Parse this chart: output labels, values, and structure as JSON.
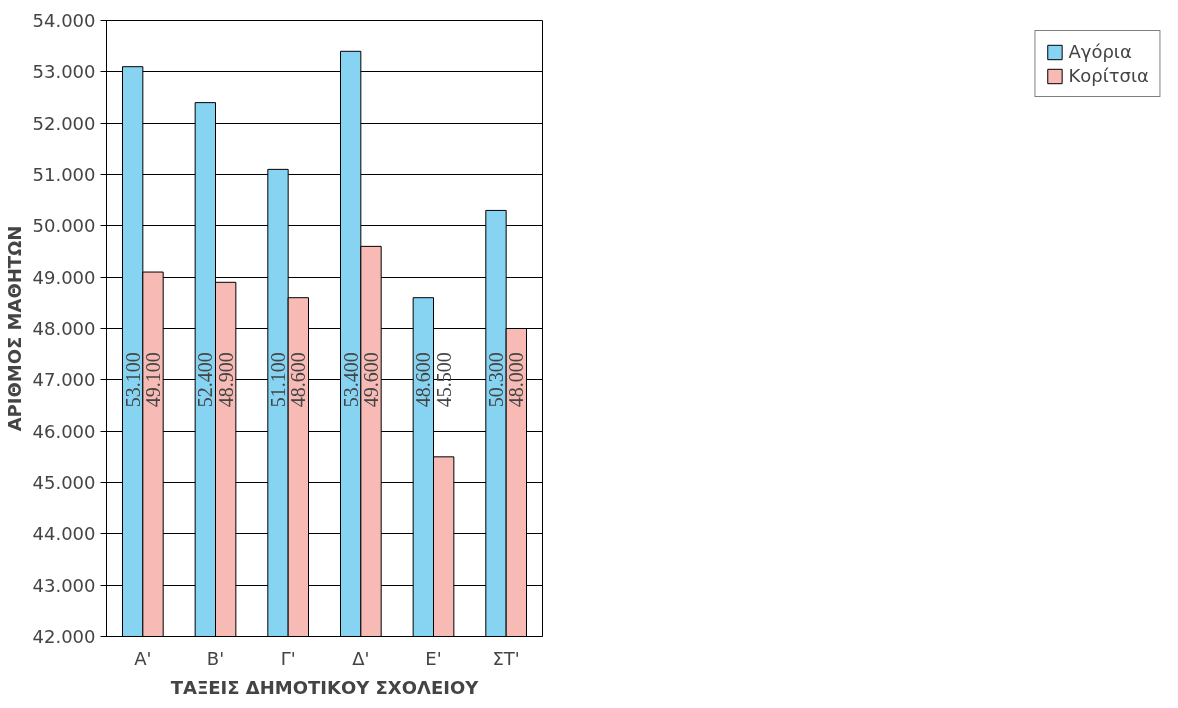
{
  "chart_data": {
    "type": "bar",
    "xlabel": "ΤΑΞΕΙΣ ΔΗΜΟΤΙΚΟΥ ΣΧΟΛΕΙΟΥ",
    "ylabel": "ΑΡΙΘΜΟΣ ΜΑΘΗΤΩΝ",
    "categories": [
      "Α'",
      "Β'",
      "Γ'",
      "Δ'",
      "Ε'",
      "ΣΤ'"
    ],
    "series": [
      {
        "name": "Αγόρια",
        "color": "#87d4f2",
        "values": [
          53100,
          52400,
          51100,
          53400,
          48600,
          50300
        ],
        "value_labels": [
          "53.100",
          "52.400",
          "51.100",
          "53.400",
          "48.600",
          "50.300"
        ]
      },
      {
        "name": "Κορίτσια",
        "color": "#f7bab5",
        "values": [
          49100,
          48900,
          48600,
          49600,
          45500,
          48000
        ],
        "value_labels": [
          "49.100",
          "48.900",
          "48.600",
          "49.600",
          "45.500",
          "48.000"
        ]
      }
    ],
    "ylim": [
      42000,
      54000
    ],
    "yticks": [
      {
        "value": 42000,
        "label": "42.000"
      },
      {
        "value": 43000,
        "label": "43.000"
      },
      {
        "value": 44000,
        "label": "44.000"
      },
      {
        "value": 45000,
        "label": "45.000"
      },
      {
        "value": 46000,
        "label": "46.000"
      },
      {
        "value": 47000,
        "label": "47.000"
      },
      {
        "value": 48000,
        "label": "48.000"
      },
      {
        "value": 49000,
        "label": "49.000"
      },
      {
        "value": 50000,
        "label": "50.000"
      },
      {
        "value": 51000,
        "label": "51.000"
      },
      {
        "value": 52000,
        "label": "52.000"
      },
      {
        "value": 53000,
        "label": "53.000"
      },
      {
        "value": 54000,
        "label": "54.000"
      }
    ],
    "grid": "y",
    "legend": "right"
  }
}
